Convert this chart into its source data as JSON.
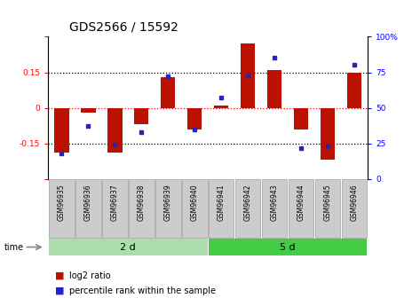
{
  "title": "GDS2566 / 15592",
  "samples": [
    "GSM96935",
    "GSM96936",
    "GSM96937",
    "GSM96938",
    "GSM96939",
    "GSM96940",
    "GSM96941",
    "GSM96942",
    "GSM96943",
    "GSM96944",
    "GSM96945",
    "GSM96946"
  ],
  "log2_ratio": [
    -0.19,
    -0.02,
    -0.19,
    -0.07,
    0.13,
    -0.09,
    0.01,
    0.27,
    0.16,
    -0.09,
    -0.22,
    0.15
  ],
  "percentile_rank": [
    18,
    37,
    24,
    33,
    72,
    35,
    57,
    73,
    85,
    22,
    23,
    80
  ],
  "groups": [
    {
      "label": "2 d",
      "start": 0,
      "end": 6,
      "color": "#aaddaa"
    },
    {
      "label": "5 d",
      "start": 6,
      "end": 12,
      "color": "#44cc44"
    }
  ],
  "bar_color": "#bb1100",
  "dot_color": "#2222cc",
  "ylim_left": [
    -0.3,
    0.3
  ],
  "ylim_right": [
    0,
    100
  ],
  "yticks_left": [
    -0.3,
    -0.15,
    0.0,
    0.15,
    0.3
  ],
  "yticks_left_labels": [
    "",
    "-0.15",
    "0",
    "0.15",
    ""
  ],
  "yticks_right": [
    0,
    25,
    50,
    75,
    100
  ],
  "yticks_right_labels": [
    "0",
    "25",
    "50",
    "75",
    "100%"
  ],
  "hlines_black": [
    -0.15,
    0.15
  ],
  "hline_red": 0.0,
  "title_fontsize": 10,
  "tick_fontsize": 6.5,
  "bar_width": 0.55,
  "sample_box_color": "#cccccc",
  "sample_box_edge": "#aaaaaa",
  "sample_text_fontsize": 5.5
}
